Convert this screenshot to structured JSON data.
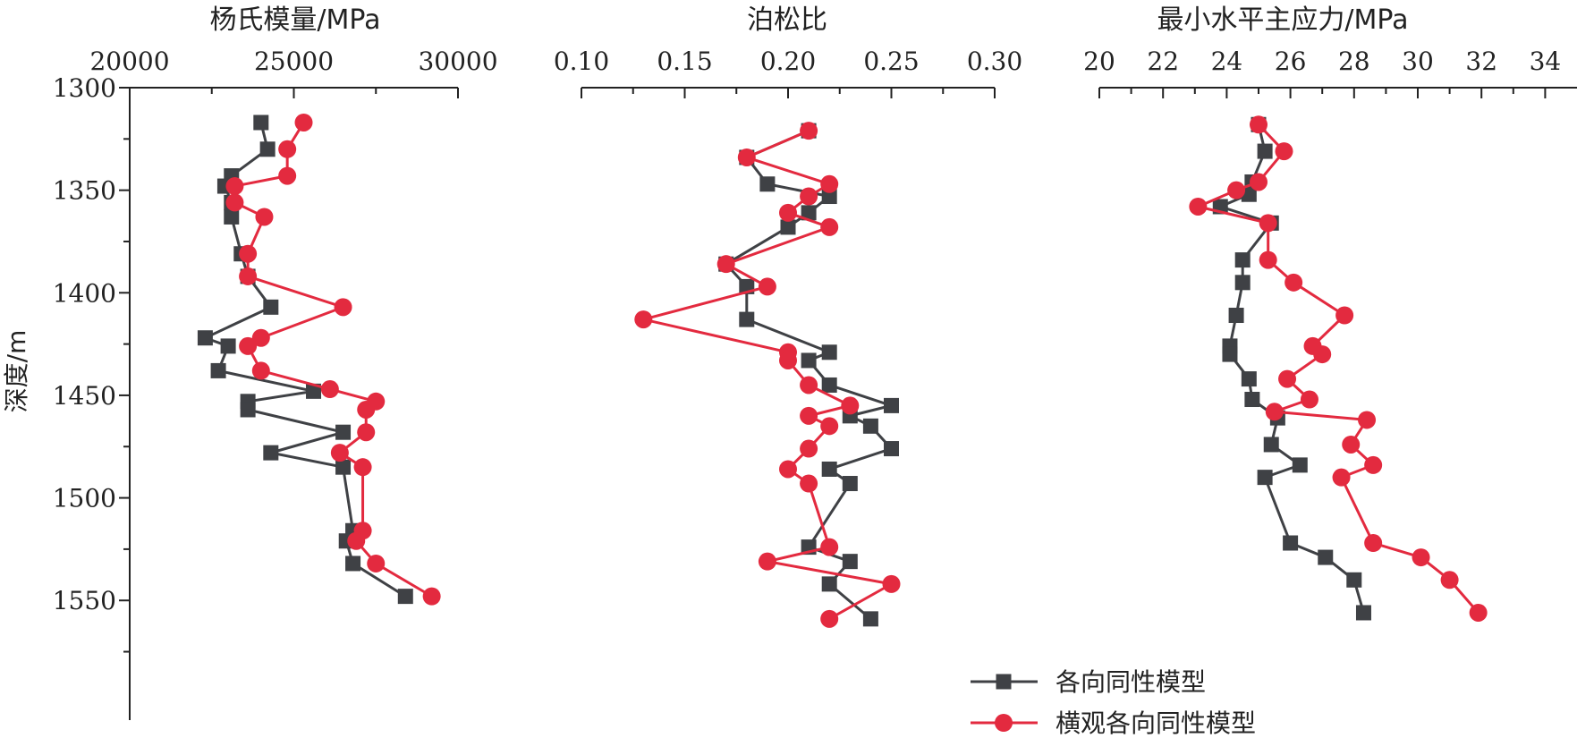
{
  "colors": {
    "iso": "#3f4145",
    "tti": "#e32a3f",
    "axis": "#222222"
  },
  "legend": {
    "iso": "各向同性模型",
    "tti": "横观各向同性模型"
  },
  "chart_data": {
    "type": "line",
    "y_axis": {
      "label": "深度/m",
      "range": [
        1300,
        1575
      ],
      "ticks": [
        1300,
        1350,
        1400,
        1450,
        1500,
        1550
      ],
      "reversed": true
    },
    "panels": [
      {
        "title": "杨氏模量/MPa",
        "xlim": [
          20000,
          30000
        ],
        "ticks": [
          20000,
          25000,
          30000
        ],
        "tick_labels": [
          "20000",
          "25000",
          "30000"
        ],
        "minor_step": 2500,
        "series": [
          {
            "name": "各向同性模型",
            "marker": "square",
            "points": [
              [
                24000,
                1317
              ],
              [
                24200,
                1330
              ],
              [
                23100,
                1343
              ],
              [
                22900,
                1348
              ],
              [
                23100,
                1356
              ],
              [
                23100,
                1363
              ],
              [
                23400,
                1381
              ],
              [
                23600,
                1392
              ],
              [
                24300,
                1407
              ],
              [
                22300,
                1422
              ],
              [
                23000,
                1426
              ],
              [
                22700,
                1438
              ],
              [
                25600,
                1448
              ],
              [
                23600,
                1453
              ],
              [
                23600,
                1457
              ],
              [
                26500,
                1468
              ],
              [
                24300,
                1478
              ],
              [
                26500,
                1485
              ],
              [
                26800,
                1516
              ],
              [
                26600,
                1521
              ],
              [
                26800,
                1532
              ],
              [
                28400,
                1548
              ]
            ]
          },
          {
            "name": "横观各向同性模型",
            "marker": "circle",
            "points": [
              [
                25300,
                1317
              ],
              [
                24800,
                1330
              ],
              [
                24800,
                1343
              ],
              [
                23200,
                1348
              ],
              [
                23200,
                1356
              ],
              [
                24100,
                1363
              ],
              [
                23600,
                1381
              ],
              [
                23600,
                1392
              ],
              [
                26500,
                1407
              ],
              [
                24000,
                1422
              ],
              [
                23600,
                1426
              ],
              [
                24000,
                1438
              ],
              [
                26100,
                1447
              ],
              [
                27500,
                1453
              ],
              [
                27200,
                1457
              ],
              [
                27200,
                1468
              ],
              [
                26400,
                1478
              ],
              [
                27100,
                1485
              ],
              [
                27100,
                1516
              ],
              [
                26900,
                1521
              ],
              [
                27500,
                1532
              ],
              [
                29200,
                1548
              ]
            ]
          }
        ]
      },
      {
        "title": "泊松比",
        "xlim": [
          0.1,
          0.3
        ],
        "ticks": [
          0.1,
          0.15,
          0.2,
          0.25,
          0.3
        ],
        "tick_labels": [
          "0.10",
          "0.15",
          "0.20",
          "0.25",
          "0.30"
        ],
        "minor_step": 0.025,
        "series": [
          {
            "name": "各向同性模型",
            "marker": "square",
            "points": [
              [
                0.21,
                1321
              ],
              [
                0.18,
                1334
              ],
              [
                0.19,
                1347
              ],
              [
                0.22,
                1353
              ],
              [
                0.21,
                1361
              ],
              [
                0.2,
                1368
              ],
              [
                0.17,
                1386
              ],
              [
                0.18,
                1397
              ],
              [
                0.18,
                1413
              ],
              [
                0.22,
                1429
              ],
              [
                0.21,
                1433
              ],
              [
                0.22,
                1445
              ],
              [
                0.25,
                1455
              ],
              [
                0.23,
                1460
              ],
              [
                0.24,
                1465
              ],
              [
                0.25,
                1476
              ],
              [
                0.22,
                1486
              ],
              [
                0.23,
                1493
              ],
              [
                0.21,
                1524
              ],
              [
                0.23,
                1531
              ],
              [
                0.22,
                1542
              ],
              [
                0.24,
                1559
              ]
            ]
          },
          {
            "name": "横观各向同性模型",
            "marker": "circle",
            "points": [
              [
                0.21,
                1321
              ],
              [
                0.18,
                1334
              ],
              [
                0.22,
                1347
              ],
              [
                0.21,
                1353
              ],
              [
                0.2,
                1361
              ],
              [
                0.22,
                1368
              ],
              [
                0.17,
                1386
              ],
              [
                0.19,
                1397
              ],
              [
                0.13,
                1413
              ],
              [
                0.2,
                1429
              ],
              [
                0.2,
                1433
              ],
              [
                0.21,
                1445
              ],
              [
                0.23,
                1455
              ],
              [
                0.21,
                1460
              ],
              [
                0.22,
                1465
              ],
              [
                0.21,
                1476
              ],
              [
                0.2,
                1486
              ],
              [
                0.21,
                1493
              ],
              [
                0.22,
                1524
              ],
              [
                0.19,
                1531
              ],
              [
                0.25,
                1542
              ],
              [
                0.22,
                1559
              ]
            ]
          }
        ]
      },
      {
        "title": "最小水平主应力/MPa",
        "xlim": [
          20,
          35
        ],
        "ticks": [
          20,
          22,
          24,
          26,
          28,
          30,
          32,
          34
        ],
        "tick_labels": [
          "20",
          "22",
          "24",
          "26",
          "28",
          "30",
          "32",
          "34"
        ],
        "minor_step": 1,
        "series": [
          {
            "name": "各向同性模型",
            "marker": "square",
            "points": [
              [
                25.0,
                1318
              ],
              [
                25.2,
                1331
              ],
              [
                24.8,
                1346
              ],
              [
                24.7,
                1352
              ],
              [
                23.8,
                1358
              ],
              [
                25.4,
                1366
              ],
              [
                24.5,
                1384
              ],
              [
                24.5,
                1395
              ],
              [
                24.3,
                1411
              ],
              [
                24.1,
                1426
              ],
              [
                24.1,
                1430
              ],
              [
                24.7,
                1442
              ],
              [
                24.8,
                1452
              ],
              [
                25.6,
                1461
              ],
              [
                25.4,
                1474
              ],
              [
                26.3,
                1484
              ],
              [
                25.2,
                1490
              ],
              [
                26.0,
                1522
              ],
              [
                27.1,
                1529
              ],
              [
                28.0,
                1540
              ],
              [
                28.3,
                1556
              ]
            ]
          },
          {
            "name": "横观各向同性模型",
            "marker": "circle",
            "points": [
              [
                25.0,
                1318
              ],
              [
                25.8,
                1331
              ],
              [
                25.0,
                1346
              ],
              [
                24.3,
                1350
              ],
              [
                23.1,
                1358
              ],
              [
                25.3,
                1366
              ],
              [
                25.3,
                1384
              ],
              [
                26.1,
                1395
              ],
              [
                27.7,
                1411
              ],
              [
                26.7,
                1426
              ],
              [
                27.0,
                1430
              ],
              [
                25.9,
                1442
              ],
              [
                26.6,
                1452
              ],
              [
                25.5,
                1458
              ],
              [
                28.4,
                1462
              ],
              [
                27.9,
                1474
              ],
              [
                28.6,
                1484
              ],
              [
                27.6,
                1490
              ],
              [
                28.6,
                1522
              ],
              [
                30.1,
                1529
              ],
              [
                31.0,
                1540
              ],
              [
                31.9,
                1556
              ]
            ]
          }
        ]
      }
    ]
  }
}
